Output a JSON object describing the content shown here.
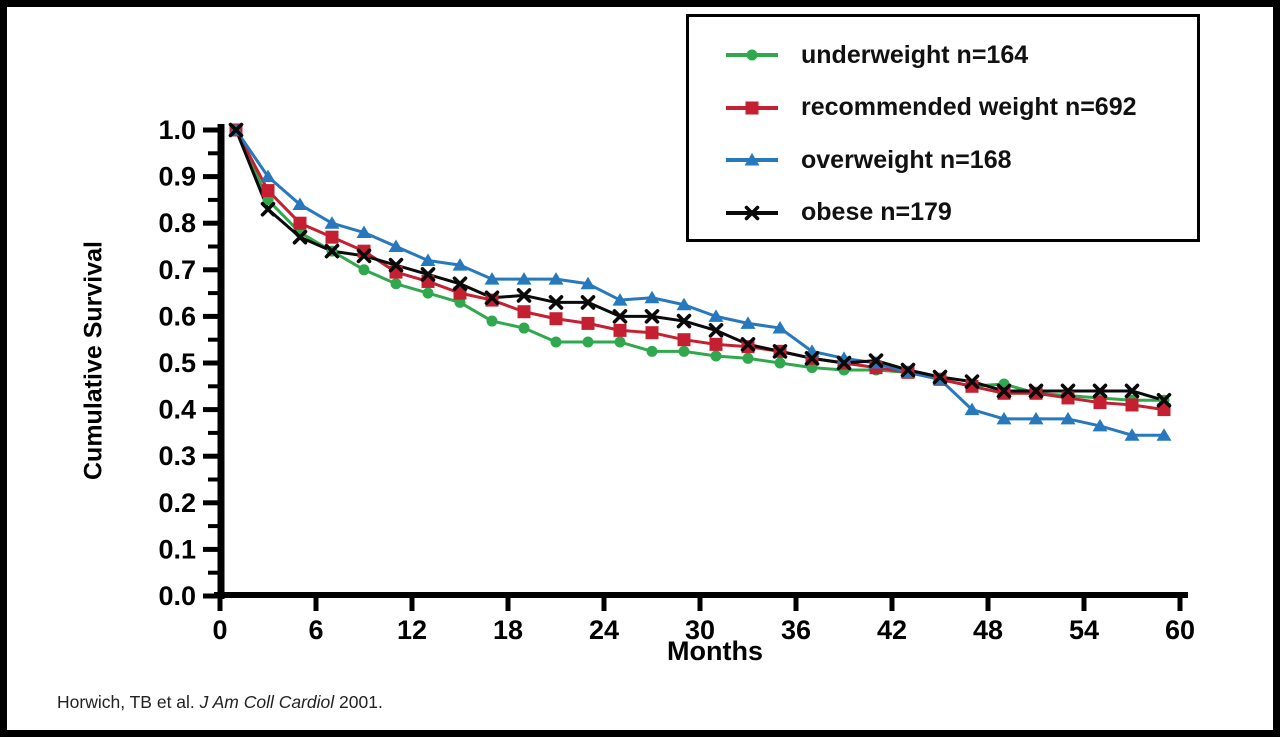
{
  "figure": {
    "background": "#ffffff",
    "axis_color": "#000000",
    "citation": {
      "prefix": "Horwich, TB et al. ",
      "journal": "J Am Coll Cardiol",
      "suffix": " 2001."
    }
  },
  "chart_data": {
    "type": "line",
    "title": "",
    "xlabel": "Months",
    "ylabel": "Cumulative Survival",
    "xlim": [
      0,
      60
    ],
    "ylim": [
      0.0,
      1.0
    ],
    "grid": false,
    "legend_position": "top-right",
    "x_ticks": [
      0,
      6,
      12,
      18,
      24,
      30,
      36,
      42,
      48,
      54,
      60
    ],
    "y_ticks": [
      "0.0",
      "0.1",
      "0.2",
      "0.3",
      "0.4",
      "0.5",
      "0.6",
      "0.7",
      "0.8",
      "0.9",
      "1.0"
    ],
    "x": [
      1,
      3,
      5,
      7,
      9,
      11,
      13,
      15,
      17,
      19,
      21,
      23,
      25,
      27,
      29,
      31,
      33,
      35,
      37,
      39,
      41,
      43,
      45,
      47,
      49,
      51,
      53,
      55,
      57,
      59
    ],
    "series": [
      {
        "name": "underweight n=164",
        "color": "#2FA84E",
        "marker": "circle",
        "values": [
          1.0,
          0.85,
          0.78,
          0.74,
          0.7,
          0.67,
          0.65,
          0.63,
          0.59,
          0.575,
          0.545,
          0.545,
          0.545,
          0.525,
          0.525,
          0.515,
          0.51,
          0.5,
          0.49,
          0.485,
          0.485,
          0.48,
          0.465,
          0.45,
          0.455,
          0.435,
          0.43,
          0.425,
          0.42,
          0.42
        ]
      },
      {
        "name": "recommended weight n=692",
        "color": "#C42032",
        "marker": "square",
        "values": [
          1.0,
          0.87,
          0.8,
          0.77,
          0.74,
          0.695,
          0.675,
          0.65,
          0.635,
          0.61,
          0.595,
          0.585,
          0.57,
          0.565,
          0.55,
          0.54,
          0.535,
          0.525,
          0.51,
          0.5,
          0.49,
          0.48,
          0.465,
          0.45,
          0.435,
          0.435,
          0.425,
          0.415,
          0.41,
          0.4
        ]
      },
      {
        "name": "overweight n=168",
        "color": "#2878BE",
        "marker": "triangle",
        "values": [
          1.0,
          0.9,
          0.84,
          0.8,
          0.78,
          0.75,
          0.72,
          0.71,
          0.68,
          0.68,
          0.68,
          0.67,
          0.635,
          0.64,
          0.625,
          0.6,
          0.585,
          0.575,
          0.525,
          0.51,
          0.5,
          0.48,
          0.465,
          0.4,
          0.38,
          0.38,
          0.38,
          0.365,
          0.345,
          0.345
        ]
      },
      {
        "name": "obese n=179",
        "color": "#0a0a0a",
        "marker": "x",
        "values": [
          1.0,
          0.83,
          0.77,
          0.74,
          0.73,
          0.71,
          0.69,
          0.67,
          0.64,
          0.645,
          0.63,
          0.63,
          0.6,
          0.6,
          0.59,
          0.57,
          0.54,
          0.525,
          0.51,
          0.5,
          0.505,
          0.485,
          0.47,
          0.46,
          0.44,
          0.44,
          0.44,
          0.44,
          0.44,
          0.42
        ]
      }
    ]
  }
}
